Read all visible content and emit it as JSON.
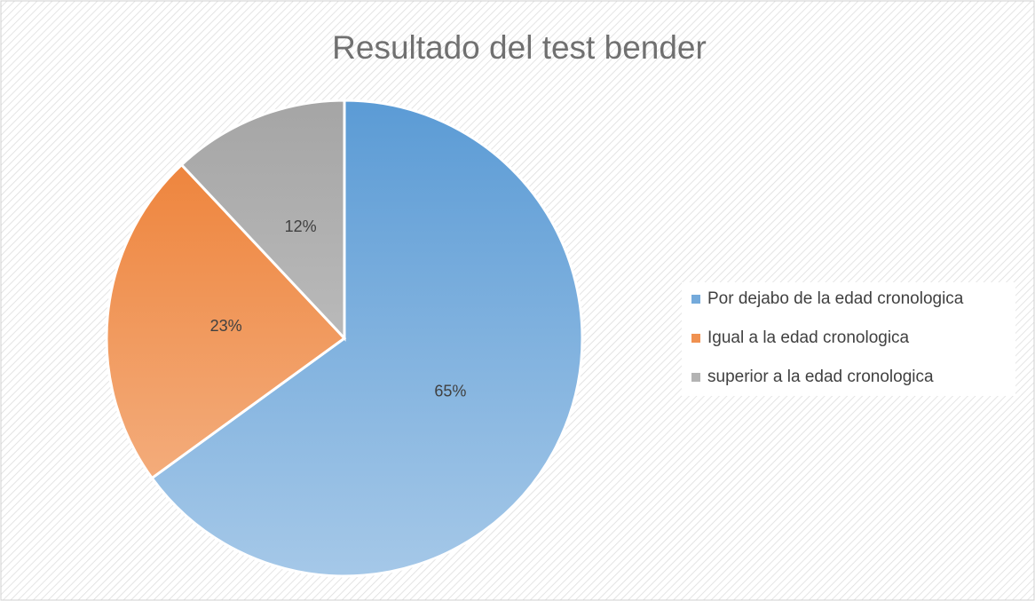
{
  "chart_data": {
    "type": "pie",
    "title": "Resultado del test bender",
    "categories": [
      "Por dejabo de la edad cronologica",
      "Igual a la edad cronologica",
      "superior a la edad cronologica"
    ],
    "values": [
      65,
      23,
      12
    ],
    "value_labels": [
      "65%",
      "23%",
      "12%"
    ],
    "colors": [
      "#5b9bd5",
      "#ed7d31",
      "#a5a5a5"
    ],
    "legend": "right"
  }
}
